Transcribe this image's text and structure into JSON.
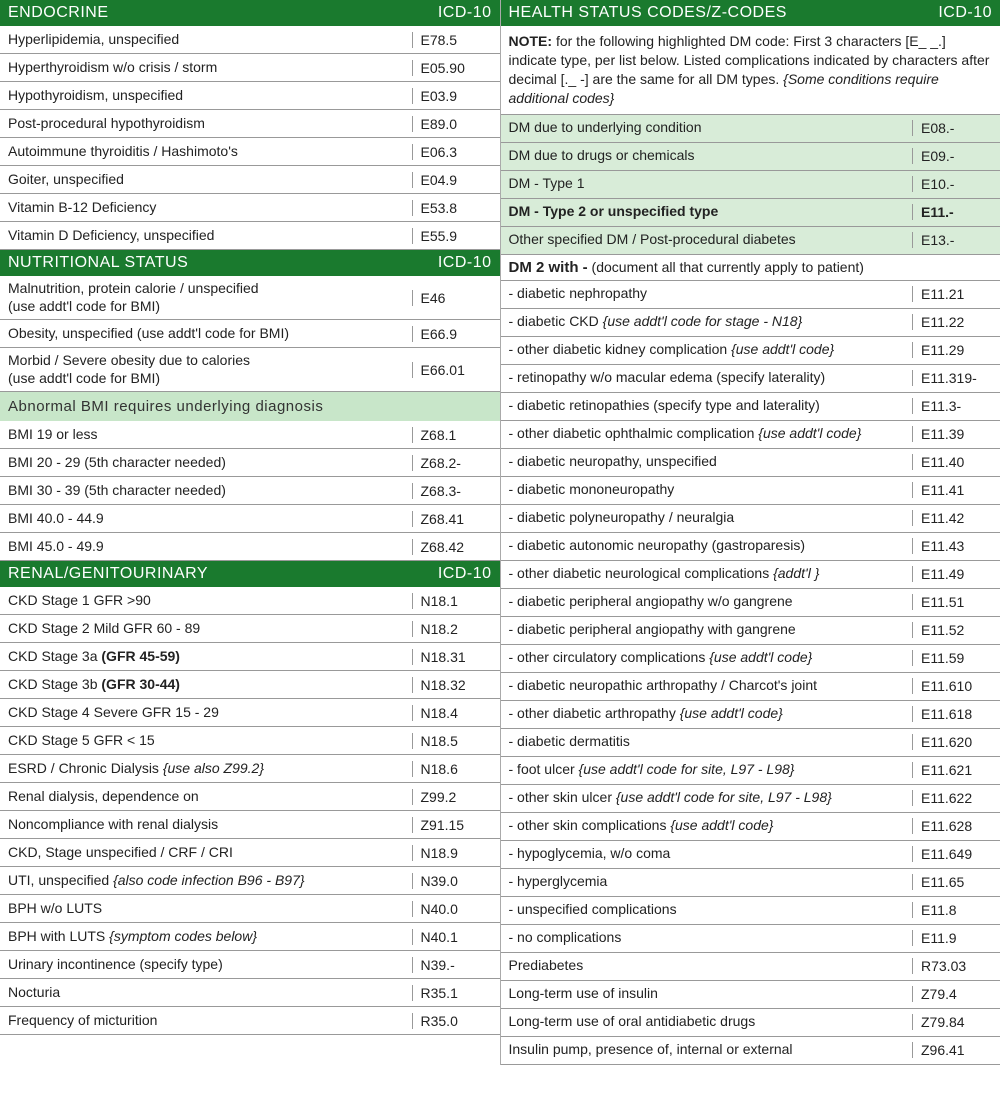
{
  "colors": {
    "header_dark": "#1a7a2e",
    "header_light": "#c8e6c9",
    "shade_row": "#d8ecd8",
    "border": "#999999",
    "text": "#222222"
  },
  "left": {
    "sections": [
      {
        "title": "ENDOCRINE",
        "code_label": "ICD-10",
        "rows": [
          {
            "label": "Hyperlipidemia, unspecified",
            "code": "E78.5"
          },
          {
            "label": "Hyperthyroidism w/o crisis / storm",
            "code": "E05.90"
          },
          {
            "label": "Hypothyroidism, unspecified",
            "code": "E03.9"
          },
          {
            "label": "Post-procedural hypothyroidism",
            "code": "E89.0"
          },
          {
            "label": "Autoimmune thyroiditis / Hashimoto's",
            "code": "E06.3"
          },
          {
            "label": "Goiter, unspecified",
            "code": "E04.9"
          },
          {
            "label": "Vitamin B-12 Deficiency",
            "code": "E53.8"
          },
          {
            "label": "Vitamin D Deficiency, unspecified",
            "code": "E55.9"
          }
        ]
      },
      {
        "title": "NUTRITIONAL STATUS",
        "code_label": "ICD-10",
        "rows": [
          {
            "label": "Malnutrition, protein calorie / unspecified\n(use addt'l code for BMI)",
            "code": "E46",
            "twoLine": true
          },
          {
            "label": "Obesity, unspecified (use addt'l code for BMI)",
            "code": "E66.9"
          },
          {
            "label": "Morbid / Severe obesity due to calories\n(use addt'l code for BMI)",
            "code": "E66.01",
            "twoLine": true
          }
        ],
        "sub": {
          "title": "Abnormal BMI requires underlying diagnosis",
          "rows": [
            {
              "label": "BMI 19 or less",
              "code": "Z68.1"
            },
            {
              "label": "BMI 20 - 29 (5th character needed)",
              "code": "Z68.2-"
            },
            {
              "label": "BMI 30 - 39 (5th character needed)",
              "code": "Z68.3-"
            },
            {
              "label": "BMI 40.0 - 44.9",
              "code": "Z68.41"
            },
            {
              "label": "BMI 45.0 - 49.9",
              "code": "Z68.42"
            }
          ]
        }
      },
      {
        "title": "RENAL/GENITOURINARY",
        "code_label": "ICD-10",
        "rows": [
          {
            "label": "CKD Stage 1 GFR >90",
            "code": "N18.1"
          },
          {
            "label": "CKD Stage 2 Mild GFR 60 - 89",
            "code": "N18.2"
          },
          {
            "label_html": "CKD Stage 3a <b>(GFR 45-59)</b>",
            "code": "N18.31"
          },
          {
            "label_html": "CKD Stage 3b <b>(GFR 30-44)</b>",
            "code": "N18.32"
          },
          {
            "label": "CKD Stage 4 Severe GFR 15 - 29",
            "code": "N18.4"
          },
          {
            "label": "CKD Stage 5 GFR < 15",
            "code": "N18.5"
          },
          {
            "label_html": "ESRD / Chronic Dialysis <i>{use also Z99.2}</i>",
            "code": "N18.6"
          },
          {
            "label": "Renal dialysis, dependence on",
            "code": "Z99.2"
          },
          {
            "label": "Noncompliance with renal dialysis",
            "code": "Z91.15"
          },
          {
            "label": "CKD, Stage unspecified / CRF / CRI",
            "code": "N18.9"
          },
          {
            "label_html": "UTI, unspecified <i>{also code infection B96 - B97}</i>",
            "code": "N39.0"
          },
          {
            "label": "BPH w/o LUTS",
            "code": "N40.0"
          },
          {
            "label_html": "BPH with LUTS <i>{symptom codes below}</i>",
            "code": "N40.1"
          },
          {
            "label": "Urinary incontinence (specify type)",
            "code": "N39.-"
          },
          {
            "label": "Nocturia",
            "code": "R35.1"
          },
          {
            "label": "Frequency of micturition",
            "code": "R35.0"
          }
        ]
      }
    ]
  },
  "right": {
    "title": "HEALTH STATUS CODES/Z-CODES",
    "code_label": "ICD-10",
    "note": {
      "label": "NOTE:",
      "text": " for the following highlighted DM code: First 3 characters [E_ _.] indicate type, per list below. Listed complications indicated by characters after decimal [._ -] are the same for all DM types. ",
      "italic": "{Some conditions require additional codes}"
    },
    "dm_types": [
      {
        "label": "DM due to underlying condition",
        "code": "E08.-",
        "shade": true
      },
      {
        "label": "DM due to drugs or chemicals",
        "code": "E09.-",
        "shade": true
      },
      {
        "label": "DM - Type 1",
        "code": "E10.-",
        "shade": true
      },
      {
        "label": "DM - Type 2 or unspecified type",
        "code": "E11.-",
        "shade": true,
        "bold": true
      },
      {
        "label": "Other specified DM / Post-procedural diabetes",
        "code": "E13.-",
        "shade": true
      }
    ],
    "dm_sub_title": "DM 2 with -",
    "dm_sub_paren": "  (document all that currently apply to patient)",
    "dm_complications": [
      {
        "label": "- diabetic nephropathy",
        "code": "E11.21"
      },
      {
        "label_html": "- diabetic CKD <i>{use addt'l code for stage - N18}</i>",
        "code": "E11.22"
      },
      {
        "label_html": "- other diabetic kidney complication <i>{use addt'l  code}</i>",
        "code": "E11.29"
      },
      {
        "label": "- retinopathy w/o macular edema (specify laterality)",
        "code": "E11.319-"
      },
      {
        "label": "- diabetic retinopathies (specify type and laterality)",
        "code": "E11.3-"
      },
      {
        "label_html": "- other diabetic ophthalmic complication <i>{use addt'l code}</i>",
        "code": "E11.39"
      },
      {
        "label": "- diabetic neuropathy, unspecified",
        "code": "E11.40"
      },
      {
        "label": "- diabetic mononeuropathy",
        "code": "E11.41"
      },
      {
        "label": "- diabetic polyneuropathy / neuralgia",
        "code": "E11.42"
      },
      {
        "label": "- diabetic autonomic neuropathy (gastroparesis)",
        "code": "E11.43"
      },
      {
        "label_html": "- other diabetic neurological complications <i>{addt'l }</i>",
        "code": "E11.49"
      },
      {
        "label": "- diabetic peripheral angiopathy w/o gangrene",
        "code": "E11.51"
      },
      {
        "label": "- diabetic peripheral angiopathy with gangrene",
        "code": "E11.52"
      },
      {
        "label_html": "- other circulatory complications <i>{use addt'l  code}</i>",
        "code": "E11.59"
      },
      {
        "label": "- diabetic neuropathic arthropathy / Charcot's joint",
        "code": "E11.610"
      },
      {
        "label_html": "- other diabetic arthropathy <i>{use addt'l code}</i>",
        "code": "E11.618"
      },
      {
        "label": "- diabetic dermatitis",
        "code": "E11.620"
      },
      {
        "label_html": "- foot ulcer <i>{use addt'l code for site, L97 - L98}</i>",
        "code": "E11.621"
      },
      {
        "label_html": "- other skin ulcer <i>{use addt'l code for site, L97 - L98}</i>",
        "code": "E11.622"
      },
      {
        "label_html": "- other skin complications <i>{use addt'l code}</i>",
        "code": "E11.628"
      },
      {
        "label": "- hypoglycemia, w/o coma",
        "code": "E11.649"
      },
      {
        "label": "- hyperglycemia",
        "code": "E11.65"
      },
      {
        "label": "- unspecified complications",
        "code": "E11.8"
      },
      {
        "label": "- no complications",
        "code": "E11.9"
      }
    ],
    "tail_rows": [
      {
        "label": "Prediabetes",
        "code": "R73.03"
      },
      {
        "label": "Long-term use of insulin",
        "code": "Z79.4"
      },
      {
        "label": "Long-term use of oral antidiabetic drugs",
        "code": "Z79.84"
      },
      {
        "label": "Insulin pump, presence of, internal or external",
        "code": "Z96.41"
      }
    ]
  }
}
